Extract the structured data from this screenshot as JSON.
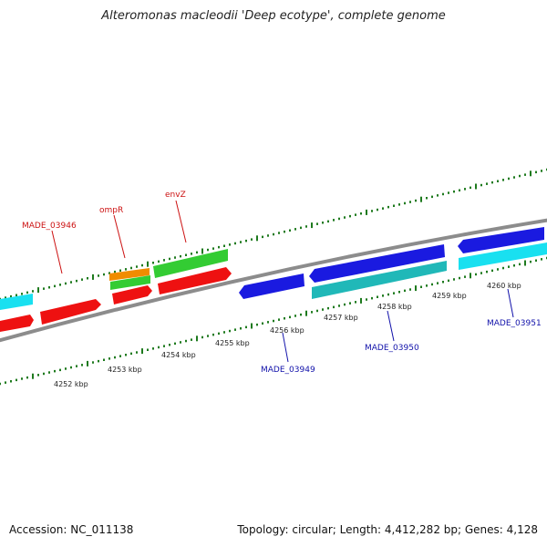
{
  "title": "Alteromonas macleodii 'Deep ecotype', complete genome",
  "footer": {
    "accession": "Accession: NC_011138",
    "summary": "Topology: circular; Length: 4,412,282 bp; Genes: 4,128"
  },
  "colors": {
    "backbone": "#8c8c8c",
    "ticks": "#1e7a1e",
    "forward_label": "#cc1111",
    "reverse_label": "#1111aa"
  },
  "ticks": [
    {
      "label": "4252 kbp"
    },
    {
      "label": "4253 kbp"
    },
    {
      "label": "4254 kbp"
    },
    {
      "label": "4255 kbp"
    },
    {
      "label": "4256 kbp"
    },
    {
      "label": "4257 kbp"
    },
    {
      "label": "4258 kbp"
    },
    {
      "label": "4259 kbp"
    },
    {
      "label": "4260 kbp"
    }
  ],
  "gene_labels": [
    {
      "name": "MADE_03946",
      "color": "#cc1111"
    },
    {
      "name": "ompR",
      "color": "#cc1111"
    },
    {
      "name": "envZ",
      "color": "#cc1111"
    },
    {
      "name": "MADE_03949",
      "color": "#1111aa"
    },
    {
      "name": "MADE_03950",
      "color": "#1111aa"
    },
    {
      "name": "MADE_03951",
      "color": "#1111aa"
    }
  ]
}
